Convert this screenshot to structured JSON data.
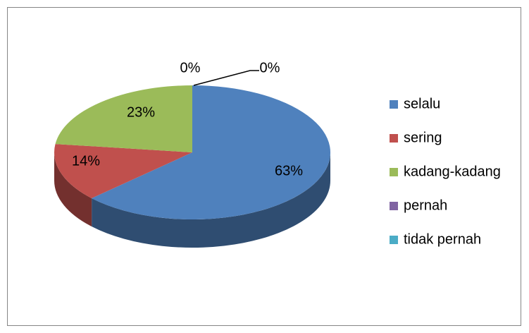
{
  "chart_data": {
    "type": "pie",
    "categories": [
      "selalu",
      "sering",
      "kadang-kadang",
      "pernah",
      "tidak pernah"
    ],
    "values": [
      63,
      14,
      23,
      0,
      0
    ],
    "value_labels": [
      "63%",
      "14%",
      "23%",
      "0%",
      "0%"
    ],
    "colors": [
      "#4f81bd",
      "#c0504d",
      "#9bbb59",
      "#8064a2",
      "#4bacc6"
    ],
    "legend": "right"
  }
}
